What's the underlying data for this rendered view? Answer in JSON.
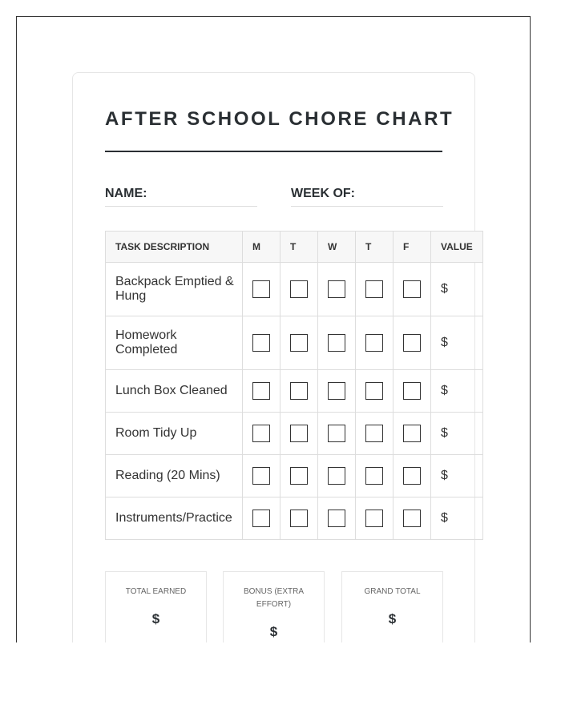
{
  "title": "AFTER SCHOOL CHORE CHART",
  "fields": {
    "name": "NAME:",
    "week": "WEEK OF:"
  },
  "table": {
    "headers": [
      "TASK DESCRIPTION",
      "M",
      "T",
      "W",
      "T",
      "F",
      "VALUE"
    ],
    "rows": [
      {
        "task": "Backpack Emptied & Hung",
        "value": "$"
      },
      {
        "task": "Homework Completed",
        "value": "$"
      },
      {
        "task": "Lunch Box Cleaned",
        "value": "$"
      },
      {
        "task": "Room Tidy Up",
        "value": "$"
      },
      {
        "task": "Reading (20 Mins)",
        "value": "$"
      },
      {
        "task": "Instruments/Practice",
        "value": "$"
      }
    ]
  },
  "totals": [
    {
      "label": "TOTAL EARNED",
      "value": "$"
    },
    {
      "label": "BONUS (EXTRA EFFORT)",
      "value": "$"
    },
    {
      "label": "GRAND TOTAL",
      "value": "$"
    }
  ]
}
